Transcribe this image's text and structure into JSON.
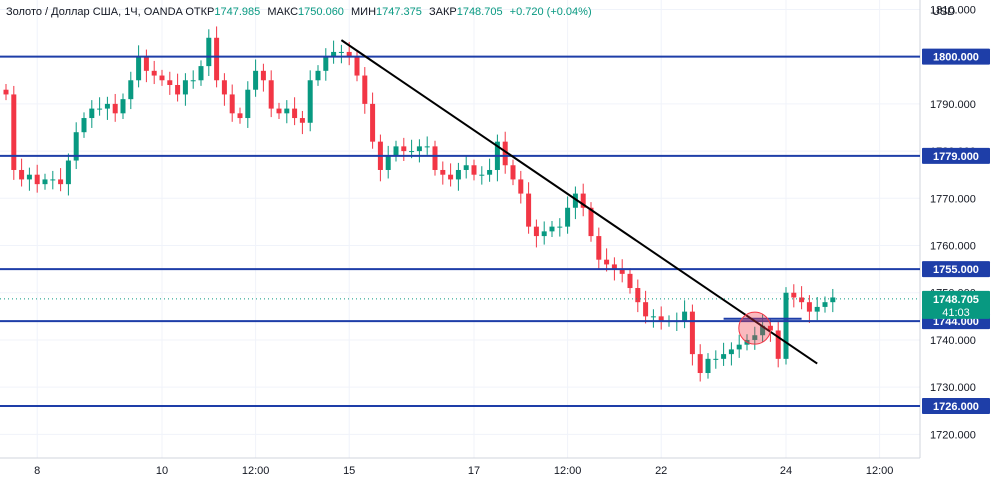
{
  "legend": {
    "symbol": "Золото / Доллар США, 1Ч, OANDA",
    "open_label": "ОТКР",
    "open": "1747.985",
    "high_label": "МАКС",
    "high": "1750.060",
    "low_label": "МИН",
    "low": "1747.375",
    "close_label": "ЗАКР",
    "close": "1748.705",
    "change": "+0.720 (+0.04%)"
  },
  "currency": "USD",
  "colors": {
    "up": "#089981",
    "down": "#f23645",
    "level": "#1e3ea8",
    "trend": "#000000",
    "price_label": "#089981",
    "marker": "#f23645"
  },
  "chart_data": {
    "type": "candlestick",
    "title": "Золото / Доллар США, 1Ч, OANDA",
    "ylim": [
      1715,
      1812
    ],
    "y_ticks": [
      1720,
      1730,
      1740,
      1750,
      1760,
      1770,
      1780,
      1790,
      1800,
      1810
    ],
    "y_tick_labels": [
      "1720.000",
      "1730.000",
      "1740.000",
      "1750.000",
      "1760.000",
      "1770.000",
      "1780.000",
      "1790.000",
      "1800.000",
      "1810.000"
    ],
    "x_ticks": [
      {
        "label": "8",
        "i": 4
      },
      {
        "label": "10",
        "i": 20
      },
      {
        "label": "12:00",
        "i": 32
      },
      {
        "label": "15",
        "i": 44
      },
      {
        "label": "17",
        "i": 60
      },
      {
        "label": "12:00",
        "i": 72
      },
      {
        "label": "22",
        "i": 84
      },
      {
        "label": "24",
        "i": 100
      },
      {
        "label": "12:00",
        "i": 112
      }
    ],
    "n_slots": 122,
    "closes": [
      1792,
      1776,
      1774,
      1775,
      1773,
      1774,
      1774,
      1773,
      1778,
      1784,
      1787,
      1789,
      1789,
      1790,
      1788,
      1791,
      1795,
      1800,
      1797,
      1796,
      1795,
      1794,
      1792,
      1795,
      1795,
      1798,
      1804,
      1795,
      1792,
      1788,
      1787,
      1793,
      1797,
      1795,
      1789,
      1788,
      1789,
      1787,
      1786,
      1795,
      1797,
      1800,
      1801,
      1801,
      1800,
      1796,
      1790,
      1782,
      1776,
      1779,
      1781,
      1780,
      1780,
      1781,
      1781,
      1776,
      1775,
      1774,
      1776,
      1777,
      1775,
      1775,
      1776,
      1782,
      1777,
      1774,
      1771,
      1764,
      1762,
      1763,
      1764,
      1764,
      1768,
      1771,
      1768,
      1762,
      1757,
      1756,
      1755,
      1754,
      1751,
      1748,
      1745,
      1745,
      1744,
      1744,
      1744,
      1746,
      1737,
      1733,
      1736,
      1736,
      1737,
      1738,
      1739,
      1740,
      1741,
      1743,
      1742,
      1736,
      1750,
      1749,
      1748,
      1746,
      1747,
      1748,
      1749
    ],
    "levels": [
      1800.0,
      1779.0,
      1755.0,
      1744.0,
      1726.0
    ],
    "level_labels": [
      "1800.000",
      "1779.000",
      "1755.000",
      "1744.000",
      "1726.000"
    ],
    "current_price": "1748.705",
    "current_price_value": 1748.705,
    "countdown": "41:03",
    "trendline": [
      {
        "i": 43,
        "v": 1803.5
      },
      {
        "i": 104,
        "v": 1735
      }
    ],
    "short_level": {
      "from_i": 92,
      "to_i": 102,
      "v": 1744.5
    },
    "marker": {
      "i": 96,
      "v": 1742.5
    }
  }
}
